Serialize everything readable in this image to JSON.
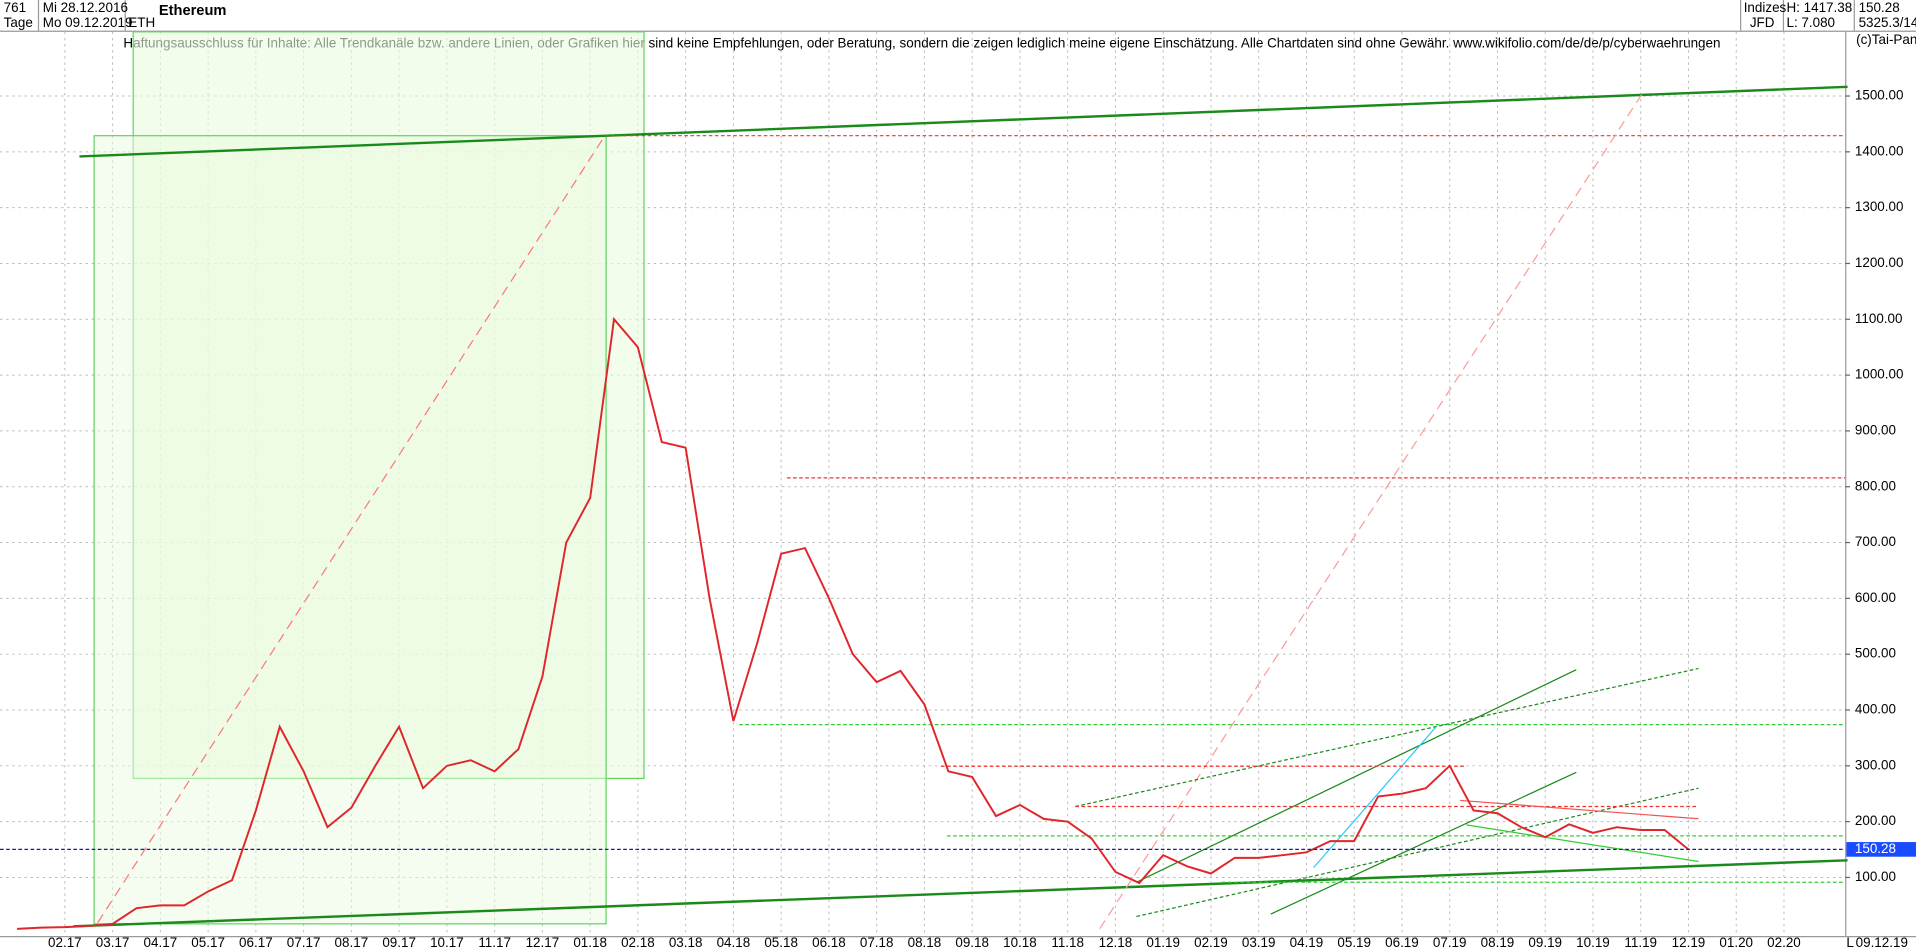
{
  "header": {
    "count": "761",
    "start_date": "Mi 28.12.2016",
    "period": "Tage",
    "end_date": "Mo 09.12.2019",
    "symbol": "ETH",
    "group": "Indizes",
    "source": "JFD",
    "high": "H: 1417.38",
    "low": "L: 7.080",
    "last": "150.28",
    "info": "5325.3/14",
    "copyright": "(c)Tai-Pan",
    "footer_date": "09.12.19",
    "footer_scale": "L"
  },
  "chart_data": {
    "type": "line",
    "title": "Ethereum",
    "annotation": "Haftungsausschluss für Inhalte: Alle Trendkanäle bzw. andere Linien, oder Grafiken hier sind keine Empfehlungen, oder Beratung, sondern die zeigen lediglich meine eigene Einschätzung. Alle Chartdaten sind ohne Gewähr.  www.wikifolio.com/de/de/p/cyberwaehrungen",
    "categories": [
      null,
      null,
      "02.17",
      null,
      "03.17",
      null,
      "04.17",
      null,
      "05.17",
      null,
      "06.17",
      null,
      "07.17",
      null,
      "08.17",
      null,
      "09.17",
      null,
      "10.17",
      null,
      "11.17",
      null,
      "12.17",
      null,
      "01.18",
      null,
      "02.18",
      null,
      "03.18",
      null,
      "04.18",
      null,
      "05.18",
      null,
      "06.18",
      null,
      "07.18",
      null,
      "08.18",
      null,
      "09.18",
      null,
      "10.18",
      null,
      "11.18",
      null,
      "12.18",
      null,
      "01.19",
      null,
      "02.19",
      null,
      "03.19",
      null,
      "04.19",
      null,
      "05.19",
      null,
      "06.19",
      null,
      "07.19",
      null,
      "08.19",
      null,
      "09.19",
      null,
      "10.19",
      null,
      "11.19",
      null,
      "12.19",
      null,
      "01.20",
      null,
      "02.20",
      null
    ],
    "values": [
      8,
      10,
      11,
      13,
      17,
      45,
      50,
      50,
      75,
      95,
      220,
      370,
      290,
      190,
      225,
      300,
      370,
      260,
      300,
      310,
      290,
      330,
      460,
      700,
      780,
      1100,
      1050,
      880,
      870,
      600,
      380,
      520,
      680,
      690,
      600,
      500,
      450,
      470,
      410,
      290,
      280,
      210,
      230,
      205,
      200,
      170,
      110,
      90,
      140,
      120,
      107,
      135,
      135,
      140,
      145,
      165,
      165,
      245,
      250,
      260,
      300,
      220,
      215,
      190,
      172,
      195,
      180,
      190,
      185,
      185,
      150,
      null,
      null,
      null,
      null,
      null
    ],
    "color": "#e0262b",
    "last_price": {
      "value": 150.28,
      "label": "150.28"
    },
    "ylim": [
      -5,
      1615
    ],
    "yticks": [
      {
        "value": 100,
        "label": "100.00"
      },
      {
        "value": 200,
        "label": "200.00"
      },
      {
        "value": 300,
        "label": "300.00"
      },
      {
        "value": 400,
        "label": "400.00"
      },
      {
        "value": 500,
        "label": "500.00"
      },
      {
        "value": 600,
        "label": "600.00"
      },
      {
        "value": 700,
        "label": "700.00"
      },
      {
        "value": 800,
        "label": "800.00"
      },
      {
        "value": 900,
        "label": "900.00"
      },
      {
        "value": 1000,
        "label": "1000.00"
      },
      {
        "value": 1100,
        "label": "1100.00"
      },
      {
        "value": 1200,
        "label": "1200.00"
      },
      {
        "value": 1300,
        "label": "1300.00"
      },
      {
        "value": 1400,
        "label": "1400.00"
      },
      {
        "value": 1500,
        "label": "1500.00"
      }
    ],
    "grid": true
  }
}
